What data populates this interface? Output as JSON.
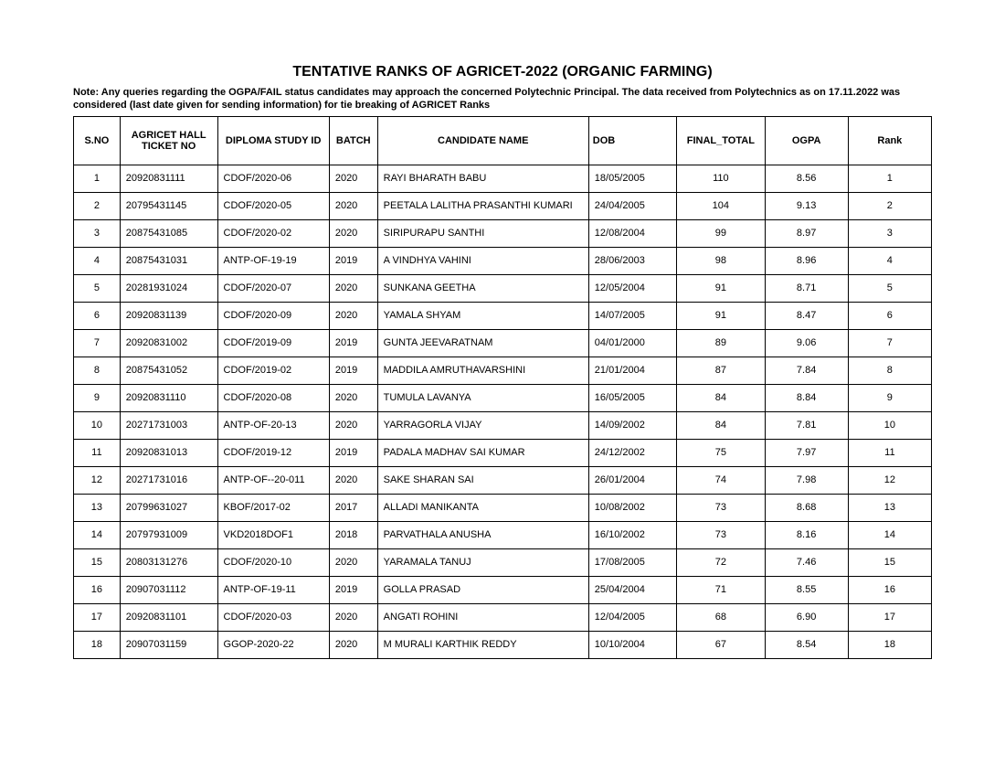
{
  "title": "TENTATIVE RANKS OF AGRICET-2022 (ORGANIC FARMING)",
  "note": "Note: Any queries regarding the OGPA/FAIL status candidates may approach the concerned Polytechnic Principal. The data received from Polytechnics as on 17.11.2022 was considered (last date given for sending information) for tie breaking of AGRICET Ranks",
  "columns": [
    "S.NO",
    "AGRICET HALL TICKET NO",
    "DIPLOMA STUDY ID",
    "BATCH",
    "CANDIDATE NAME",
    "DOB",
    "FINAL_TOTAL",
    "OGPA",
    "Rank"
  ],
  "rows": [
    {
      "sno": "1",
      "hall": "20920831111",
      "study": "CDOF/2020-06",
      "batch": "2020",
      "name": "RAYI BHARATH BABU",
      "dob": "18/05/2005",
      "total": "110",
      "ogpa": "8.56",
      "rank": "1"
    },
    {
      "sno": "2",
      "hall": "20795431145",
      "study": "CDOF/2020-05",
      "batch": "2020",
      "name": "PEETALA LALITHA PRASANTHI KUMARI",
      "dob": "24/04/2005",
      "total": "104",
      "ogpa": "9.13",
      "rank": "2"
    },
    {
      "sno": "3",
      "hall": "20875431085",
      "study": "CDOF/2020-02",
      "batch": "2020",
      "name": "SIRIPURAPU SANTHI",
      "dob": "12/08/2004",
      "total": "99",
      "ogpa": "8.97",
      "rank": "3"
    },
    {
      "sno": "4",
      "hall": "20875431031",
      "study": "ANTP-OF-19-19",
      "batch": "2019",
      "name": "A VINDHYA VAHINI",
      "dob": "28/06/2003",
      "total": "98",
      "ogpa": "8.96",
      "rank": "4"
    },
    {
      "sno": "5",
      "hall": "20281931024",
      "study": "CDOF/2020-07",
      "batch": "2020",
      "name": "SUNKANA GEETHA",
      "dob": "12/05/2004",
      "total": "91",
      "ogpa": "8.71",
      "rank": "5"
    },
    {
      "sno": "6",
      "hall": "20920831139",
      "study": "CDOF/2020-09",
      "batch": "2020",
      "name": "YAMALA SHYAM",
      "dob": "14/07/2005",
      "total": "91",
      "ogpa": "8.47",
      "rank": "6"
    },
    {
      "sno": "7",
      "hall": "20920831002",
      "study": "CDOF/2019-09",
      "batch": "2019",
      "name": "GUNTA JEEVARATNAM",
      "dob": "04/01/2000",
      "total": "89",
      "ogpa": "9.06",
      "rank": "7"
    },
    {
      "sno": "8",
      "hall": "20875431052",
      "study": "CDOF/2019-02",
      "batch": "2019",
      "name": "MADDILA AMRUTHAVARSHINI",
      "dob": "21/01/2004",
      "total": "87",
      "ogpa": "7.84",
      "rank": "8"
    },
    {
      "sno": "9",
      "hall": "20920831110",
      "study": "CDOF/2020-08",
      "batch": "2020",
      "name": "TUMULA LAVANYA",
      "dob": "16/05/2005",
      "total": "84",
      "ogpa": "8.84",
      "rank": "9"
    },
    {
      "sno": "10",
      "hall": "20271731003",
      "study": "ANTP-OF-20-13",
      "batch": "2020",
      "name": "YARRAGORLA VIJAY",
      "dob": "14/09/2002",
      "total": "84",
      "ogpa": "7.81",
      "rank": "10"
    },
    {
      "sno": "11",
      "hall": "20920831013",
      "study": "CDOF/2019-12",
      "batch": "2019",
      "name": "PADALA MADHAV SAI KUMAR",
      "dob": "24/12/2002",
      "total": "75",
      "ogpa": "7.97",
      "rank": "11"
    },
    {
      "sno": "12",
      "hall": "20271731016",
      "study": "ANTP-OF--20-011",
      "batch": "2020",
      "name": "SAKE SHARAN SAI",
      "dob": "26/01/2004",
      "total": "74",
      "ogpa": "7.98",
      "rank": "12"
    },
    {
      "sno": "13",
      "hall": "20799631027",
      "study": "KBOF/2017-02",
      "batch": "2017",
      "name": "ALLADI MANIKANTA",
      "dob": "10/08/2002",
      "total": "73",
      "ogpa": "8.68",
      "rank": "13"
    },
    {
      "sno": "14",
      "hall": "20797931009",
      "study": "VKD2018DOF1",
      "batch": "2018",
      "name": "PARVATHALA ANUSHA",
      "dob": "16/10/2002",
      "total": "73",
      "ogpa": "8.16",
      "rank": "14"
    },
    {
      "sno": "15",
      "hall": "20803131276",
      "study": "CDOF/2020-10",
      "batch": "2020",
      "name": "YARAMALA TANUJ",
      "dob": "17/08/2005",
      "total": "72",
      "ogpa": "7.46",
      "rank": "15"
    },
    {
      "sno": "16",
      "hall": "20907031112",
      "study": "ANTP-OF-19-11",
      "batch": "2019",
      "name": "GOLLA PRASAD",
      "dob": "25/04/2004",
      "total": "71",
      "ogpa": "8.55",
      "rank": "16"
    },
    {
      "sno": "17",
      "hall": "20920831101",
      "study": "CDOF/2020-03",
      "batch": "2020",
      "name": "ANGATI ROHINI",
      "dob": "12/04/2005",
      "total": "68",
      "ogpa": "6.90",
      "rank": "17"
    },
    {
      "sno": "18",
      "hall": "20907031159",
      "study": "GGOP-2020-22",
      "batch": "2020",
      "name": "M MURALI KARTHIK REDDY",
      "dob": "10/10/2004",
      "total": "67",
      "ogpa": "8.54",
      "rank": "18"
    }
  ]
}
